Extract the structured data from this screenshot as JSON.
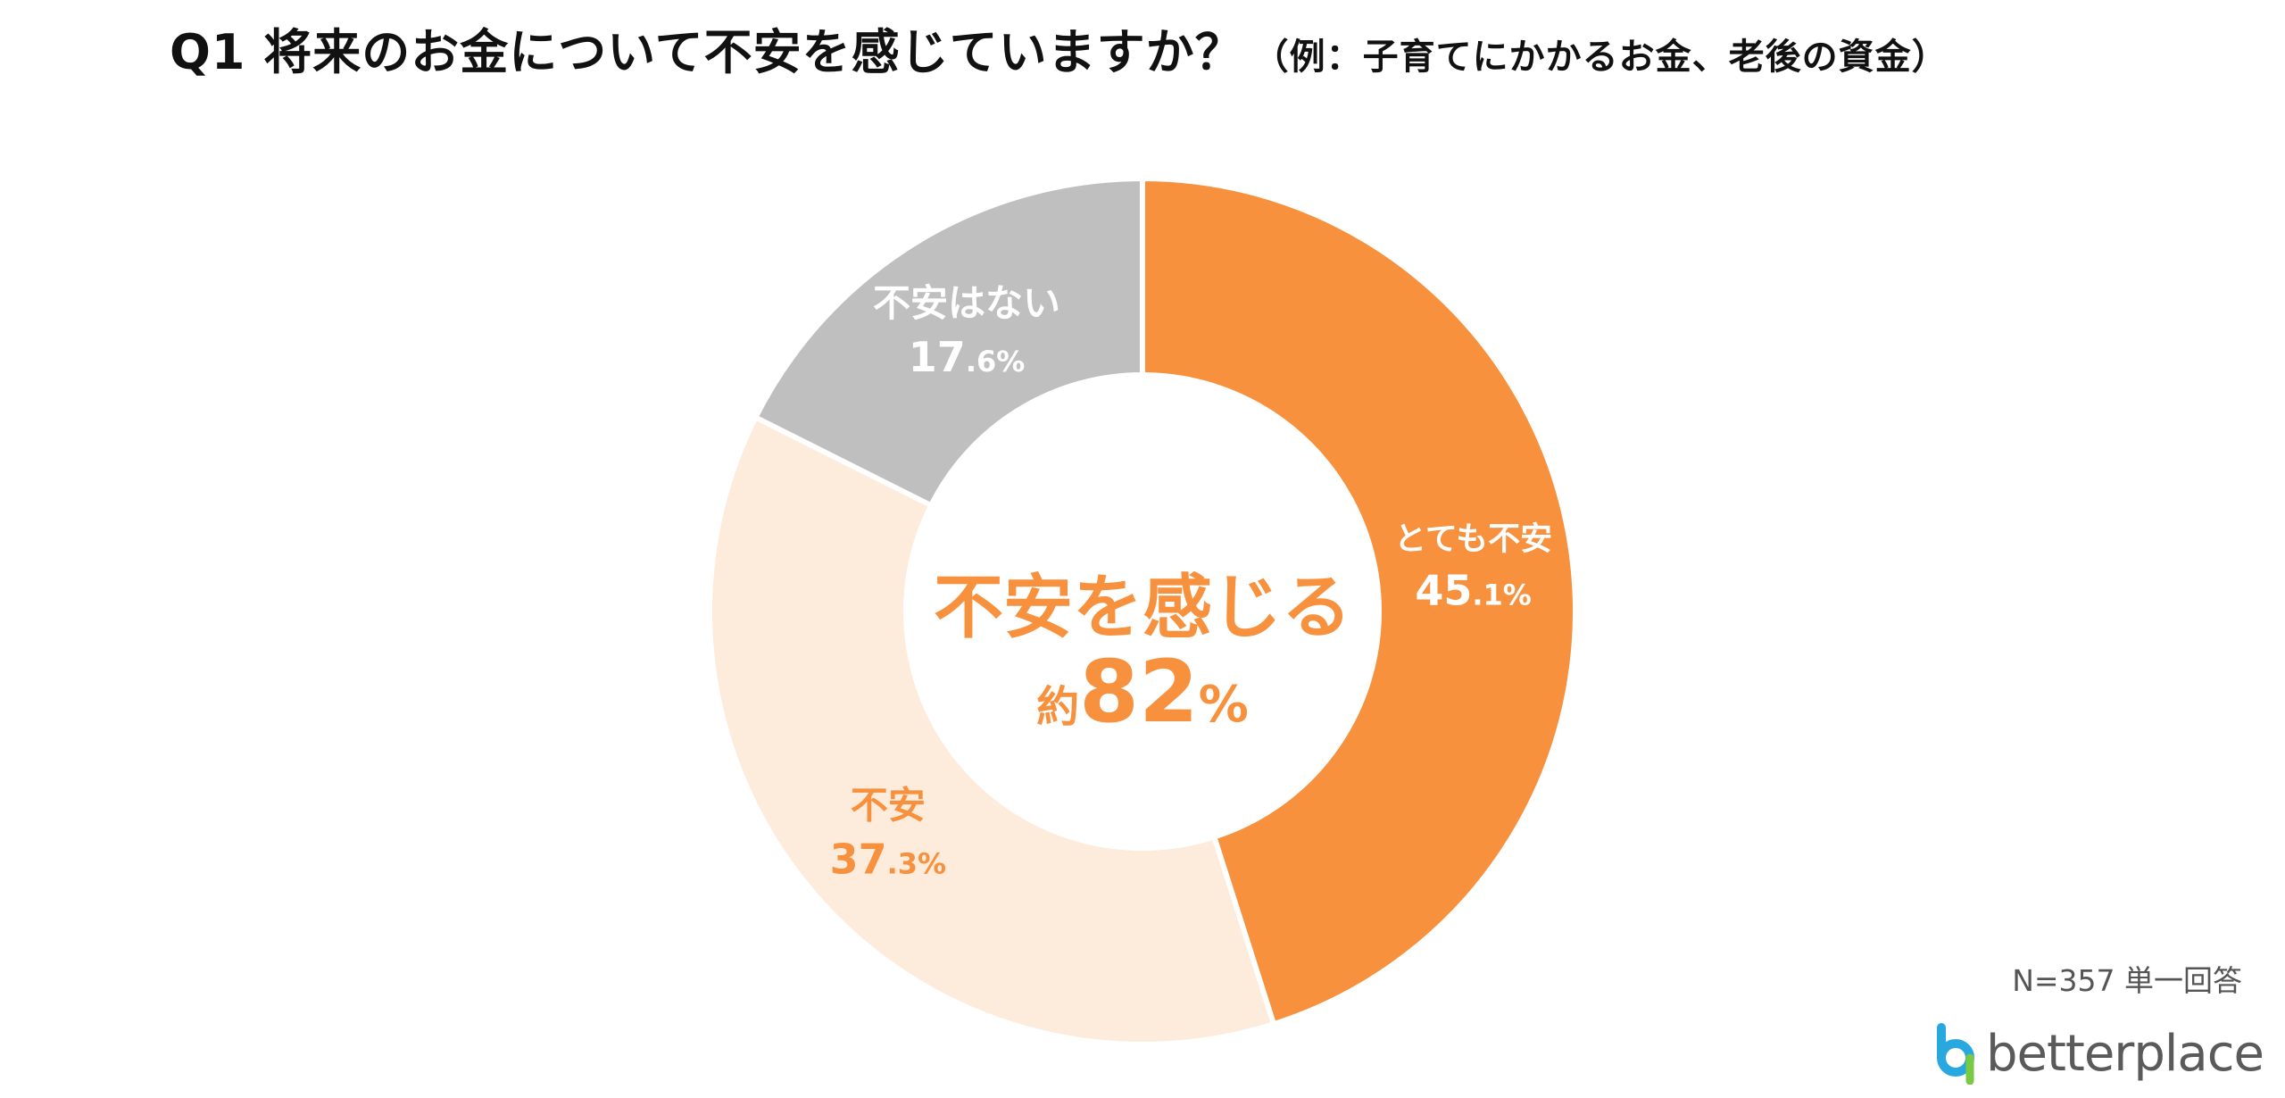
{
  "title": {
    "main": "Q1 将来のお金について不安を感じていますか？",
    "sub": "（例：子育てにかかるお金、老後の資金）"
  },
  "chart_data": {
    "type": "pie",
    "variant": "donut",
    "segments": [
      {
        "label": "とても不安",
        "value": 45.1,
        "display_int": "45",
        "display_dec": ".1",
        "unit": "%",
        "color": "#F7913D",
        "text_color": "#FFFFFF"
      },
      {
        "label": "不安",
        "value": 37.3,
        "display_int": "37",
        "display_dec": ".3",
        "unit": "%",
        "color": "#FDEBDC",
        "text_color": "#F7913D"
      },
      {
        "label": "不安はない",
        "value": 17.6,
        "display_int": "17",
        "display_dec": ".6",
        "unit": "%",
        "color": "#BFBFBF",
        "text_color": "#FFFFFF"
      }
    ],
    "center": {
      "line1": "不安を感じる",
      "prefix": "約",
      "value": "82",
      "unit": "%",
      "color": "#F7913D"
    }
  },
  "footer": {
    "sample": "N=357 単一回答",
    "logo_text": "betterplace"
  }
}
